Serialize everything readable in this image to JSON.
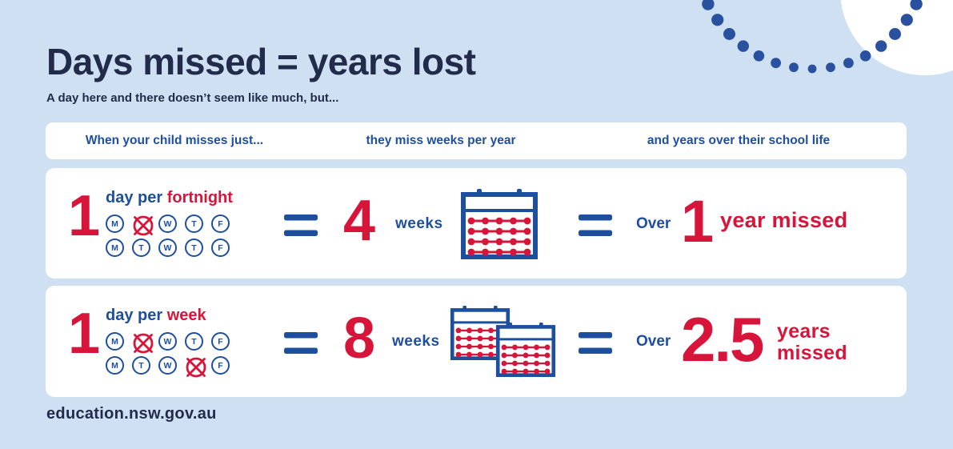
{
  "page": {
    "title": "Days missed = years lost",
    "subtitle": "A day here and there doesn’t seem like much, but...",
    "footer": "education.nsw.gov.au"
  },
  "colors": {
    "background": "#cfe0f3",
    "navy_text": "#222b49",
    "blue": "#1d4f9e",
    "red": "#d7153a",
    "dot_navy": "#2a519f",
    "card": "#ffffff"
  },
  "header_columns": [
    {
      "label": "When your child misses just..."
    },
    {
      "label": "they miss weeks per year"
    },
    {
      "label": "and years over their school life"
    }
  ],
  "rows": [
    {
      "missed_number": "1",
      "missed_unit_blue": "day per",
      "missed_unit_red": "fortnight",
      "week_rows": [
        [
          "M",
          "X",
          "W",
          "T",
          "F"
        ],
        [
          "M",
          "T",
          "W",
          "T",
          "F"
        ]
      ],
      "crossed_meaning": "missed day",
      "weeks_number": "4",
      "weeks_label": "weeks",
      "calendar_count": 1,
      "over_label": "Over",
      "years_number": "1",
      "years_label": "year missed"
    },
    {
      "missed_number": "1",
      "missed_unit_blue": "day per",
      "missed_unit_red": "week",
      "week_rows": [
        [
          "M",
          "X",
          "W",
          "T",
          "F"
        ],
        [
          "M",
          "T",
          "W",
          "X",
          "F"
        ]
      ],
      "crossed_meaning": "missed day",
      "weeks_number": "8",
      "weeks_label": "weeks",
      "calendar_count": 2,
      "over_label": "Over",
      "years_number": "2.5",
      "years_label": "years missed"
    }
  ]
}
